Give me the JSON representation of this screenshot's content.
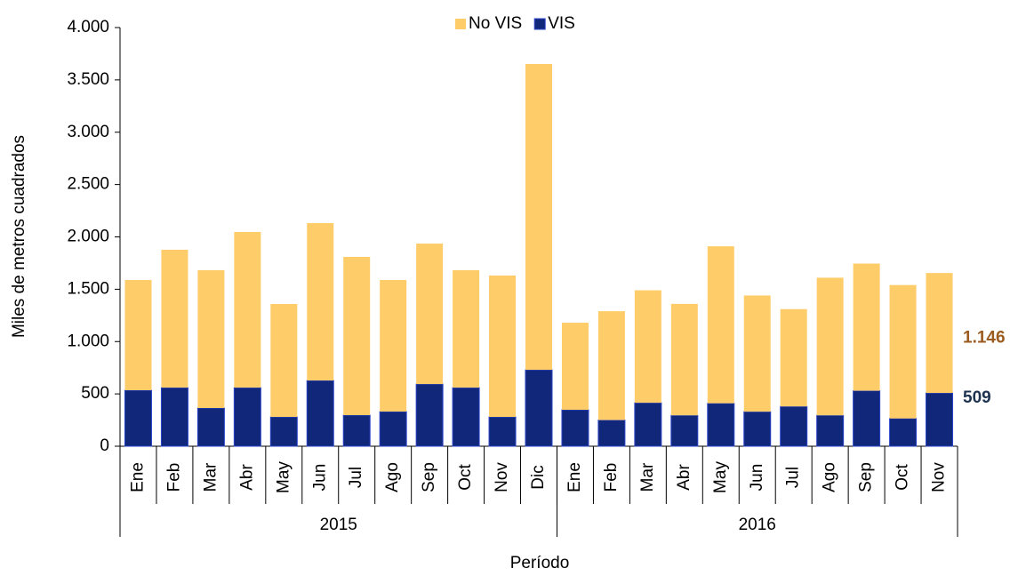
{
  "chart_data": {
    "type": "stacked_bar",
    "y_label": "Miles de metros cuadrados",
    "x_label": "Período",
    "categories": [
      "Ene",
      "Feb",
      "Mar",
      "Abr",
      "May",
      "Jun",
      "Jul",
      "Ago",
      "Sep",
      "Oct",
      "Nov",
      "Dic",
      "Ene",
      "Feb",
      "Mar",
      "Abr",
      "May",
      "Jun",
      "Jul",
      "Ago",
      "Sep",
      "Oct",
      "Nov"
    ],
    "groups": [
      {
        "label": "2015",
        "size": 12
      },
      {
        "label": "2016",
        "size": 11
      }
    ],
    "series": [
      {
        "name": "VIS",
        "color": "#10277a",
        "values": [
          535,
          560,
          365,
          560,
          280,
          628,
          297,
          331,
          594,
          560,
          280,
          730,
          348,
          250,
          415,
          295,
          410,
          330,
          380,
          295,
          530,
          265,
          509
        ],
        "value_labels": [
          null,
          null,
          null,
          null,
          null,
          null,
          null,
          null,
          null,
          null,
          null,
          null,
          null,
          null,
          null,
          null,
          null,
          null,
          null,
          null,
          null,
          null,
          "509"
        ],
        "label_color": "#1f3350"
      },
      {
        "name": "No VIS",
        "color": "#ffcc6a",
        "values": [
          1053,
          1317,
          1317,
          1487,
          1079,
          1504,
          1512,
          1257,
          1342,
          1122,
          1351,
          2922,
          832,
          1040,
          1075,
          1065,
          1500,
          1110,
          930,
          1315,
          1215,
          1275,
          1146
        ],
        "value_labels": [
          null,
          null,
          null,
          null,
          null,
          null,
          null,
          null,
          null,
          null,
          null,
          null,
          null,
          null,
          null,
          null,
          null,
          null,
          null,
          null,
          null,
          null,
          "1.146"
        ],
        "label_color": "#9c5b1e"
      }
    ],
    "legend_order": [
      1,
      0
    ],
    "ylim": [
      0,
      4000
    ],
    "yticks": [
      0,
      500,
      {
        "value": 1000,
        "label": "1.000"
      },
      {
        "value": 1500,
        "label": "1.500"
      },
      {
        "value": 2000,
        "label": "2.000"
      },
      {
        "value": 2500,
        "label": "2.500"
      },
      {
        "value": 3000,
        "label": "3.000"
      },
      {
        "value": 3500,
        "label": "3.500"
      },
      {
        "value": 4000,
        "label": "4.000"
      }
    ],
    "grid": false
  }
}
